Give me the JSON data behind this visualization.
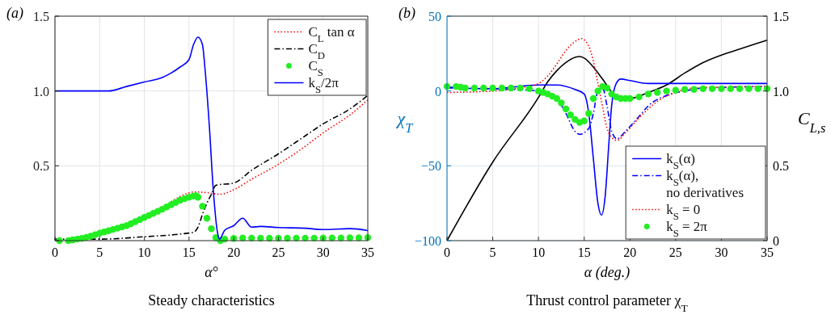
{
  "chart_data": [
    {
      "type": "line",
      "title": "Steady characteristics",
      "xlabel": "α°",
      "annotations": [
        "(a)"
      ],
      "xlim": [
        0,
        35
      ],
      "ylim": [
        0,
        1.5
      ],
      "xticks": [
        0,
        5,
        10,
        15,
        20,
        25,
        30,
        35
      ],
      "yticks": [
        {
          "value": 0,
          "label": null
        },
        {
          "value": 0.5,
          "label": "0.5"
        },
        {
          "value": 1,
          "label": "1.0"
        },
        {
          "value": 1.5,
          "label": "1.5"
        }
      ],
      "grid": true,
      "legend": "top right",
      "series": [
        {
          "name": "C$_{L}$ tan α",
          "color": "#ff0000",
          "line_style": "dotted",
          "x": [
            13,
            14,
            15,
            15.5,
            16,
            17,
            18.5,
            20,
            22,
            25,
            28,
            30,
            33,
            35
          ],
          "values": [
            0.26,
            0.295,
            0.32,
            0.325,
            0.325,
            0.32,
            0.31,
            0.34,
            0.41,
            0.51,
            0.63,
            0.72,
            0.84,
            0.94
          ]
        },
        {
          "name": "C$_{D}$",
          "color": "#000000",
          "line_style": "dashdot",
          "x": [
            0,
            5,
            10,
            14,
            15.5,
            16,
            16.5,
            17,
            17.5,
            18,
            20,
            22,
            25,
            28,
            30,
            33,
            35
          ],
          "values": [
            0.01,
            0.01,
            0.026,
            0.044,
            0.056,
            0.09,
            0.175,
            0.25,
            0.31,
            0.37,
            0.385,
            0.47,
            0.58,
            0.7,
            0.78,
            0.88,
            0.97
          ]
        },
        {
          "name": "C$_{S}$",
          "type": "scatter",
          "marker": "circle",
          "color": "#22ee22",
          "x": [
            0.5,
            1.5,
            2,
            2.5,
            3,
            3.5,
            4,
            4.5,
            5,
            5.5,
            6,
            6.5,
            7,
            7.5,
            8,
            8.5,
            9,
            9.5,
            10,
            10.5,
            11,
            11.5,
            12,
            12.5,
            13,
            13.5,
            14,
            14.5,
            15,
            15.5,
            15.8,
            16,
            16.5,
            17,
            17.5,
            18,
            18.5,
            19,
            20,
            21,
            22,
            23,
            24,
            25,
            26,
            27,
            28,
            29,
            30,
            31,
            32,
            33,
            34,
            35
          ],
          "values": [
            0,
            0,
            0.005,
            0.01,
            0.015,
            0.022,
            0.03,
            0.04,
            0.05,
            0.058,
            0.066,
            0.075,
            0.083,
            0.092,
            0.1,
            0.113,
            0.127,
            0.14,
            0.155,
            0.168,
            0.182,
            0.196,
            0.21,
            0.225,
            0.24,
            0.255,
            0.27,
            0.28,
            0.29,
            0.298,
            0.3,
            0.29,
            0.23,
            0.15,
            0.08,
            0.02,
            0,
            0.01,
            0.015,
            0.018,
            0.017,
            0.016,
            0.016,
            0.016,
            0.016,
            0.017,
            0.017,
            0.017,
            0.018,
            0.018,
            0.018,
            0.019,
            0.019,
            0.02
          ]
        },
        {
          "name": "k$_{S}$/2π",
          "color": "#0000ff",
          "line_style": "solid",
          "x": [
            0,
            6,
            8,
            10,
            12,
            13,
            14,
            15,
            15.5,
            16,
            16.5,
            16.8,
            17.3,
            17.7,
            18.2,
            18.4,
            19,
            20,
            21,
            22,
            23,
            25,
            28,
            30,
            33,
            35
          ],
          "values": [
            1,
            1,
            1.03,
            1.06,
            1.09,
            1.12,
            1.16,
            1.21,
            1.31,
            1.36,
            1.31,
            1.14,
            0.74,
            0.35,
            0.05,
            0.01,
            0.07,
            0.1,
            0.15,
            0.09,
            0.095,
            0.088,
            0.083,
            0.074,
            0.08,
            0.067
          ]
        }
      ]
    },
    {
      "type": "line",
      "title": "Thrust control parameter χ$_{T}$",
      "xlabel": "α (deg.)",
      "ylabel": "χ$_{T}$",
      "y2label": "C$_{L,s}$",
      "annotations": [
        "(b)"
      ],
      "xlim": [
        0,
        35
      ],
      "ylim": [
        -100,
        50
      ],
      "y2lim": [
        0,
        1.5
      ],
      "xticks": [
        0,
        5,
        10,
        15,
        20,
        25,
        30,
        35
      ],
      "yticks": [
        {
          "value": -100,
          "label": "−100"
        },
        {
          "value": -50,
          "label": "−50"
        },
        0,
        50
      ],
      "y2ticks": [
        0,
        {
          "value": 0.5,
          "label": "0.5"
        },
        {
          "value": 1,
          "label": "1.0"
        },
        {
          "value": 1.5,
          "label": "1.5"
        }
      ],
      "grid": true,
      "legend": "bottom right",
      "series": [
        {
          "color": "#000000",
          "line_style": "solid",
          "axis": "y2",
          "x": [
            0,
            5,
            10,
            11,
            12,
            13,
            14,
            14.5,
            15,
            16,
            17,
            18,
            19,
            20,
            22,
            24,
            26,
            28,
            30,
            32,
            35
          ],
          "values": [
            0,
            0.525,
            0.957,
            1.06,
            1.135,
            1.19,
            1.225,
            1.23,
            1.22,
            1.16,
            1.08,
            0.995,
            0.95,
            0.95,
            0.99,
            1.04,
            1.12,
            1.19,
            1.24,
            1.28,
            1.34
          ]
        },
        {
          "name": "k$_{S}$(α)",
          "color": "#0000ff",
          "line_style": "solid",
          "x": [
            0,
            1,
            5,
            10,
            12,
            14,
            15,
            15.5,
            16,
            16.5,
            16.9,
            17.3,
            17.7,
            18,
            18.5,
            19,
            20,
            22,
            25,
            35
          ],
          "values": [
            3,
            2,
            1.5,
            4,
            4,
            1,
            -2,
            -15,
            -45,
            -75,
            -83,
            -70,
            -35,
            -10,
            5,
            8,
            7,
            5,
            5,
            5
          ]
        },
        {
          "name": "k$_{S}$(α), no derivatives",
          "color": "#0000ff",
          "line_style": "dashdot",
          "x": [
            0,
            5,
            10,
            12,
            13,
            14,
            14.5,
            15.5,
            16,
            16.5,
            17,
            17.5,
            18,
            18.6,
            19.5,
            21,
            22,
            24,
            26,
            28,
            35
          ],
          "values": [
            2,
            1.5,
            0,
            -5,
            -15,
            -27,
            -29,
            -25,
            -15,
            0,
            2,
            -10,
            -27,
            -32,
            -27,
            -17,
            -10,
            -3,
            0,
            2,
            3
          ]
        },
        {
          "name": "k$_{S}$ = 0",
          "color": "#ff0000",
          "line_style": "dotted",
          "x": [
            0,
            5,
            8,
            10,
            11,
            12,
            13,
            14,
            14.7,
            15.5,
            16,
            16.5,
            17,
            17.5,
            18,
            18.6,
            19.5,
            21,
            23,
            25,
            27,
            35
          ],
          "values": [
            -1,
            0,
            2,
            5,
            10,
            18,
            27,
            33,
            35,
            30,
            20,
            5,
            -10,
            -25,
            -31,
            -33,
            -28,
            -18,
            -7,
            -1,
            2,
            3
          ]
        },
        {
          "name": "k$_{S}$ = 2π",
          "type": "scatter",
          "marker": "circle",
          "color": "#22ee22",
          "x": [
            0,
            1,
            1.5,
            2,
            3,
            4,
            5,
            6,
            7,
            8,
            9,
            10,
            10.5,
            11,
            11.5,
            12,
            12.5,
            13,
            13.5,
            14,
            14.5,
            15,
            15.5,
            16,
            16.5,
            17,
            17.5,
            18,
            18.5,
            19,
            19.5,
            20,
            21,
            22,
            23,
            24,
            25,
            26,
            27,
            28,
            29,
            30,
            31,
            32,
            33,
            34,
            35
          ],
          "values": [
            3,
            3,
            2.5,
            2,
            2,
            2,
            2,
            2,
            2,
            2,
            1.5,
            0,
            -1,
            -2,
            -3.5,
            -5,
            -8,
            -12,
            -16,
            -19,
            -21,
            -20,
            -15,
            -5,
            0,
            3,
            2,
            -2,
            -4,
            -5,
            -5,
            -5,
            -4,
            -2,
            -1,
            0,
            0.5,
            1,
            1,
            1.5,
            1.5,
            1.5,
            1.5,
            1.5,
            1.5,
            1.5,
            1.5
          ]
        }
      ]
    }
  ]
}
